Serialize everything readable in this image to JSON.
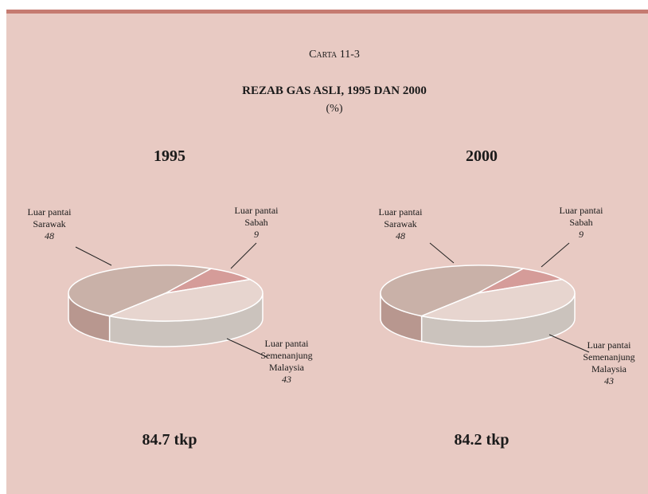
{
  "header": {
    "label": "Carta 11-3",
    "title": "REZAB GAS ASLI, 1995 DAN 2000",
    "subtitle": "(%)"
  },
  "chart_data": [
    {
      "type": "pie",
      "title": "1995",
      "categories": [
        [
          "Luar pantai",
          "Sarawak"
        ],
        [
          "Luar pantai",
          "Sabah"
        ],
        [
          "Luar pantai",
          "Semenanjung",
          "Malaysia"
        ]
      ],
      "values": [
        48,
        9,
        43
      ],
      "colors": [
        "#c9b1a8",
        "#d59c99",
        "#e7d5cf"
      ],
      "side_colors": [
        "#b8978f",
        "#b9807c",
        "#cbc3bd"
      ],
      "annotation": "84.7 tkp"
    },
    {
      "type": "pie",
      "title": "2000",
      "categories": [
        [
          "Luar pantai",
          "Sarawak"
        ],
        [
          "Luar pantai",
          "Sabah"
        ],
        [
          "Luar pantai",
          "Semenanjung",
          "Malaysia"
        ]
      ],
      "values": [
        48,
        9,
        43
      ],
      "colors": [
        "#c9b1a8",
        "#d59c99",
        "#e7d5cf"
      ],
      "side_colors": [
        "#b8978f",
        "#b9807c",
        "#cbc3bd"
      ],
      "annotation": "84.2 tkp"
    }
  ]
}
